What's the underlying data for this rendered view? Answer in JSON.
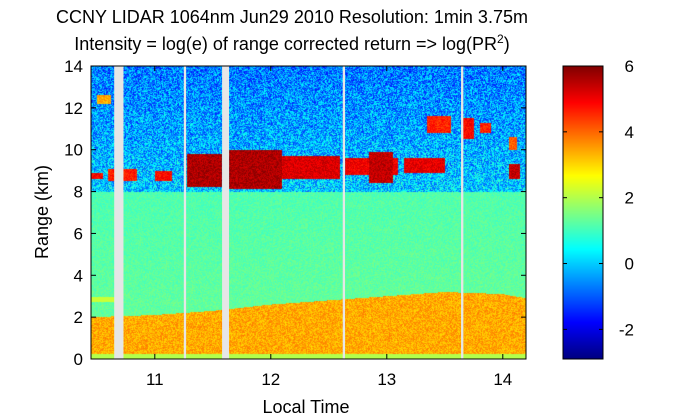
{
  "chart_data": {
    "type": "heatmap",
    "title": "CCNY LIDAR 1064nm Jun29 2010 Resolution: 1min 3.75m",
    "subtitle_prefix": "Intensity = log(e) of range corrected return => log(PR",
    "subtitle_superscript": "2",
    "subtitle_suffix": ")",
    "xlabel": "Local Time",
    "ylabel": "Range (km)",
    "x_range": [
      10.45,
      14.2
    ],
    "y_range": [
      0,
      14
    ],
    "x_ticks": [
      11,
      12,
      13,
      14
    ],
    "x_tick_labels": [
      "11",
      "12",
      "13",
      "14"
    ],
    "y_ticks": [
      0,
      2,
      4,
      6,
      8,
      10,
      12,
      14
    ],
    "y_tick_labels": [
      "0",
      "2",
      "4",
      "6",
      "8",
      "10",
      "12",
      "14"
    ],
    "colorbar": {
      "range": [
        -2.9,
        6
      ],
      "ticks": [
        -2,
        0,
        2,
        4,
        6
      ],
      "tick_labels": [
        "-2",
        "0",
        "2",
        "4",
        "6"
      ],
      "colormap": "jet"
    },
    "data_gaps": [
      {
        "x_start": 10.65,
        "x_end": 10.73
      },
      {
        "x_start": 11.25,
        "x_end": 11.27
      },
      {
        "x_start": 11.58,
        "x_end": 11.64
      },
      {
        "x_start": 12.62,
        "x_end": 12.64
      },
      {
        "x_start": 13.64,
        "x_end": 13.66
      }
    ],
    "features": {
      "boundary_layer": {
        "points": [
          [
            10.45,
            2.0
          ],
          [
            11.0,
            2.1
          ],
          [
            11.5,
            2.3
          ],
          [
            12.0,
            2.6
          ],
          [
            12.5,
            2.8
          ],
          [
            13.0,
            3.0
          ],
          [
            13.5,
            3.2
          ],
          [
            14.0,
            3.1
          ],
          [
            14.2,
            2.9
          ]
        ],
        "intensity": 3.4
      },
      "residual_layer": {
        "y_bottom": 2.7,
        "y_top": 2.95,
        "x_start": 10.45,
        "x_end": 10.7,
        "intensity": 2.2
      },
      "cloud_segments": [
        {
          "x_start": 10.45,
          "x_end": 10.55,
          "y_bottom": 8.6,
          "y_top": 8.9,
          "intensity": 5.3
        },
        {
          "x_start": 10.6,
          "x_end": 10.85,
          "y_bottom": 8.5,
          "y_top": 9.1,
          "intensity": 5.0
        },
        {
          "x_start": 11.0,
          "x_end": 11.15,
          "y_bottom": 8.5,
          "y_top": 9.0,
          "intensity": 5.2
        },
        {
          "x_start": 11.28,
          "x_end": 11.58,
          "y_bottom": 8.2,
          "y_top": 9.8,
          "intensity": 6.0
        },
        {
          "x_start": 11.64,
          "x_end": 12.1,
          "y_bottom": 8.1,
          "y_top": 10.0,
          "intensity": 6.0
        },
        {
          "x_start": 12.1,
          "x_end": 12.6,
          "y_bottom": 8.6,
          "y_top": 9.7,
          "intensity": 5.6
        },
        {
          "x_start": 12.64,
          "x_end": 13.1,
          "y_bottom": 8.8,
          "y_top": 9.6,
          "intensity": 5.4
        },
        {
          "x_start": 12.85,
          "x_end": 13.05,
          "y_bottom": 8.4,
          "y_top": 9.9,
          "intensity": 5.8
        },
        {
          "x_start": 13.15,
          "x_end": 13.5,
          "y_bottom": 8.9,
          "y_top": 9.6,
          "intensity": 5.5
        },
        {
          "x_start": 14.05,
          "x_end": 14.15,
          "y_bottom": 8.6,
          "y_top": 9.3,
          "intensity": 5.8
        }
      ],
      "upper_layers": [
        {
          "x_start": 10.5,
          "x_end": 10.62,
          "y_bottom": 12.2,
          "y_top": 12.6,
          "intensity": 3.8
        },
        {
          "x_start": 13.35,
          "x_end": 13.55,
          "y_bottom": 10.8,
          "y_top": 11.6,
          "intensity": 5.0
        },
        {
          "x_start": 13.65,
          "x_end": 13.75,
          "y_bottom": 10.5,
          "y_top": 11.5,
          "intensity": 5.3
        },
        {
          "x_start": 13.8,
          "x_end": 13.9,
          "y_bottom": 10.8,
          "y_top": 11.3,
          "intensity": 5.0
        },
        {
          "x_start": 14.05,
          "x_end": 14.12,
          "y_bottom": 10.0,
          "y_top": 10.6,
          "intensity": 4.5
        }
      ],
      "clear_air_below_cloud": 1.3,
      "free_troposphere_noise": 0.0
    }
  }
}
